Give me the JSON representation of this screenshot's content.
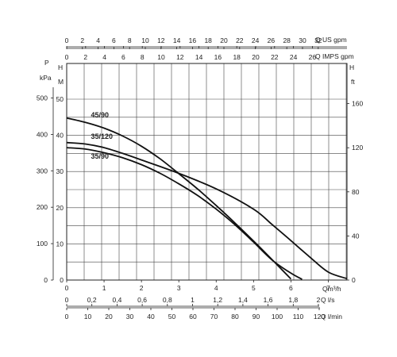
{
  "chart_data": {
    "type": "line",
    "grid": true,
    "x_axis": {
      "unit": "Qm³/h",
      "range": [
        0,
        7.5
      ],
      "ticks": [
        "0",
        "1",
        "2",
        "3",
        "4",
        "5",
        "6",
        "7"
      ]
    },
    "y_axis_head": {
      "labels": [
        "H",
        "M"
      ],
      "range": [
        0,
        50
      ],
      "ticks": [
        "0",
        "10",
        "20",
        "30",
        "40",
        "50"
      ]
    },
    "y_axis_pressure": {
      "labels": [
        "P",
        "kPa"
      ],
      "ticks": [
        "0",
        "100",
        "200",
        "300",
        "400",
        "500"
      ]
    },
    "y_axis_feet": {
      "labels": [
        "H",
        "ft"
      ],
      "ticks": [
        "0",
        "40",
        "80",
        "120",
        "160"
      ]
    },
    "top_axis_us_gpm": {
      "unit": "Q US gpm",
      "ticks": [
        "0",
        "2",
        "4",
        "6",
        "8",
        "10",
        "12",
        "14",
        "16",
        "18",
        "20",
        "22",
        "24",
        "26",
        "28",
        "30",
        "32"
      ]
    },
    "top_axis_imps_gpm": {
      "unit": "Q IMPS gpm",
      "ticks": [
        "0",
        "2",
        "4",
        "6",
        "8",
        "10",
        "12",
        "14",
        "16",
        "18",
        "20",
        "22",
        "24",
        "26"
      ]
    },
    "bottom_axis_ls": {
      "unit": "Q l/s",
      "ticks": [
        "0",
        "0,2",
        "0,4",
        "0,6",
        "0,8",
        "1",
        "1,2",
        "1,4",
        "1,6",
        "1,8",
        "2"
      ]
    },
    "bottom_axis_lmin": {
      "unit": "Q l/min",
      "ticks": [
        "0",
        "10",
        "20",
        "30",
        "40",
        "50",
        "60",
        "70",
        "80",
        "90",
        "100",
        "110",
        "120"
      ]
    },
    "series": [
      {
        "name": "45/90",
        "label_at": [
          0.35,
          45
        ],
        "points": [
          [
            0,
            44.8
          ],
          [
            0.5,
            43.6
          ],
          [
            1,
            42.0
          ],
          [
            1.5,
            39.8
          ],
          [
            2,
            37.0
          ],
          [
            2.5,
            33.5
          ],
          [
            3,
            29.4
          ],
          [
            3.5,
            25.2
          ],
          [
            4,
            20.6
          ],
          [
            4.5,
            15.8
          ],
          [
            5,
            10.8
          ],
          [
            5.5,
            5.6
          ],
          [
            6,
            0.3
          ]
        ]
      },
      {
        "name": "35/120",
        "label_at": [
          0.35,
          39
        ],
        "points": [
          [
            0,
            38.0
          ],
          [
            0.5,
            37.6
          ],
          [
            1,
            36.6
          ],
          [
            1.5,
            35.0
          ],
          [
            2,
            33.2
          ],
          [
            3,
            29.5
          ],
          [
            4,
            25.2
          ],
          [
            5,
            19.6
          ],
          [
            5.5,
            15.3
          ],
          [
            6,
            10.9
          ],
          [
            6.5,
            6.4
          ],
          [
            7,
            2.2
          ],
          [
            7.5,
            0.4
          ]
        ]
      },
      {
        "name": "35/90",
        "label_at": [
          0.35,
          33.5
        ],
        "points": [
          [
            0,
            36.6
          ],
          [
            0.5,
            36.2
          ],
          [
            1,
            35.2
          ],
          [
            1.5,
            33.8
          ],
          [
            2,
            31.9
          ],
          [
            2.5,
            29.5
          ],
          [
            3,
            26.6
          ],
          [
            3.5,
            23.4
          ],
          [
            4,
            19.6
          ],
          [
            4.5,
            15.3
          ],
          [
            5,
            10.5
          ],
          [
            5.5,
            5.5
          ],
          [
            6,
            1.9
          ],
          [
            6.3,
            0.2
          ]
        ]
      }
    ]
  }
}
